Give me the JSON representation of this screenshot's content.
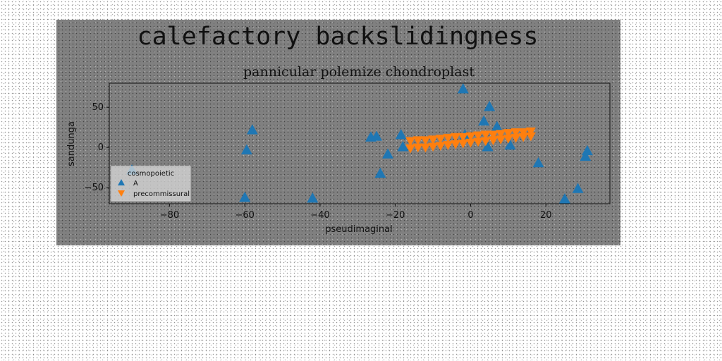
{
  "chart_data": {
    "type": "scatter",
    "suptitle": "calefactory backslidingness",
    "title": "pannicular polemize chondroplast",
    "xlabel": "pseudimaginal",
    "ylabel": "sandunga",
    "xlim": [
      -96,
      37
    ],
    "ylim": [
      -70,
      80
    ],
    "x_ticks": [
      -80,
      -60,
      -40,
      -20,
      0,
      20
    ],
    "y_ticks": [
      -50,
      0,
      50
    ],
    "grid": false,
    "legend": {
      "position": "lower-left",
      "title": "cosmopoietic"
    },
    "colors": {
      "A": "#1f77b4",
      "precommissural": "#ff7f0e"
    },
    "series": [
      {
        "name": "A",
        "marker": "triangle-up",
        "color": "#1f77b4",
        "points": [
          [
            -90,
            -28
          ],
          [
            -60,
            -62
          ],
          [
            -59.5,
            -3
          ],
          [
            -58,
            22
          ],
          [
            -42,
            -63
          ],
          [
            -26.5,
            13
          ],
          [
            -25,
            14
          ],
          [
            -24,
            -32
          ],
          [
            -22,
            -8
          ],
          [
            -18.5,
            16
          ],
          [
            -18,
            1
          ],
          [
            -2,
            73
          ],
          [
            -1.5,
            16
          ],
          [
            3.5,
            33
          ],
          [
            5,
            51
          ],
          [
            4.5,
            1
          ],
          [
            7,
            26
          ],
          [
            10.5,
            3
          ],
          [
            18,
            -19
          ],
          [
            25,
            -64
          ],
          [
            28.5,
            -51
          ],
          [
            30.5,
            -11
          ],
          [
            31,
            -4
          ]
        ]
      },
      {
        "name": "precommissural",
        "marker": "triangle-down",
        "color": "#ff7f0e",
        "points": [
          [
            -16,
            -1
          ],
          [
            -14,
            0
          ],
          [
            -12,
            0
          ],
          [
            -10,
            1
          ],
          [
            -8,
            2
          ],
          [
            -6,
            3
          ],
          [
            -4,
            4
          ],
          [
            -2,
            5
          ],
          [
            0,
            6
          ],
          [
            2,
            7
          ],
          [
            4,
            8
          ],
          [
            6,
            9
          ],
          [
            8,
            10
          ],
          [
            10,
            11
          ],
          [
            12,
            12
          ],
          [
            14,
            13
          ],
          [
            16,
            14
          ],
          [
            -16,
            8
          ],
          [
            -14,
            9
          ],
          [
            -12,
            9
          ],
          [
            -10,
            10
          ],
          [
            -8,
            11
          ],
          [
            -6,
            12
          ],
          [
            -4,
            13
          ],
          [
            -2,
            13
          ],
          [
            0,
            14
          ],
          [
            2,
            15
          ],
          [
            4,
            16
          ],
          [
            6,
            16
          ],
          [
            8,
            17
          ],
          [
            10,
            18
          ],
          [
            12,
            19
          ],
          [
            14,
            19
          ],
          [
            16,
            20
          ]
        ]
      }
    ]
  }
}
